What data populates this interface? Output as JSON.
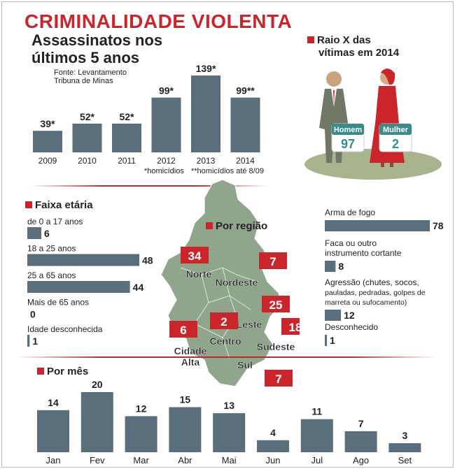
{
  "header": {
    "title": "CRIMINALIDADE VIOLENTA",
    "subtitle_line1": "Assassinatos nos",
    "subtitle_line2": "últimos 5 anos",
    "source_line1": "Fonte: Levantamento",
    "source_line2": "Tribuna de Minas"
  },
  "yearly_notes": {
    "homicidios": "*homicídios",
    "homicidios_ate": "**homicídios até 8/09"
  },
  "victims": {
    "title_line1": "Raio X das",
    "title_line2": "vítimas em 2014",
    "male_label": "Homem",
    "male_value": "97",
    "female_label": "Mulher",
    "female_value": "2"
  },
  "age_section": {
    "title": "Faixa etária"
  },
  "region_section": {
    "title": "Por região"
  },
  "month_section": {
    "title": "Por mês"
  },
  "colors": {
    "accent": "#c9252b",
    "bar": "#5b6e7c",
    "map": "#8fa58c",
    "teal": "#3a8c8c"
  },
  "chart_data": [
    {
      "type": "bar",
      "title": "Assassinatos nos últimos 5 anos",
      "categories": [
        "2009",
        "2010",
        "2011",
        "2012",
        "2013",
        "2014"
      ],
      "values": [
        39,
        52,
        52,
        99,
        139,
        99
      ],
      "data_labels": [
        "39*",
        "52*",
        "52*",
        "99*",
        "139*",
        "99**"
      ],
      "ylim": [
        0,
        139
      ]
    },
    {
      "type": "bar",
      "title": "Faixa etária",
      "categories": [
        "de 0 a 17 anos",
        "18 a 25 anos",
        "25 a 65 anos",
        "Mais de 65 anos",
        "Idade desconhecida"
      ],
      "values": [
        6,
        48,
        44,
        0,
        1
      ],
      "xlim": [
        0,
        48
      ]
    },
    {
      "type": "bar",
      "title": "",
      "categories": [
        "Arma de fogo",
        "Faca ou outro instrumento cortante",
        "Agressão (chutes, socos, pauladas, pedradas, golpes de marreta ou sufocamento)",
        "Desconhecido"
      ],
      "values": [
        78,
        8,
        12,
        1
      ],
      "xlim": [
        0,
        78
      ]
    },
    {
      "type": "table",
      "title": "Por região",
      "categories": [
        "Norte",
        "Nordeste",
        "Leste",
        "Sudeste",
        "Centro",
        "Cidade Alta",
        "Sul"
      ],
      "values": [
        34,
        7,
        25,
        18,
        2,
        6,
        7
      ]
    },
    {
      "type": "bar",
      "title": "Por mês",
      "categories": [
        "Jan",
        "Fev",
        "Mar",
        "Abr",
        "Mai",
        "Jun",
        "Jul",
        "Ago",
        "Set"
      ],
      "values": [
        14,
        20,
        12,
        15,
        13,
        4,
        11,
        7,
        3
      ],
      "ylim": [
        0,
        20
      ]
    }
  ]
}
